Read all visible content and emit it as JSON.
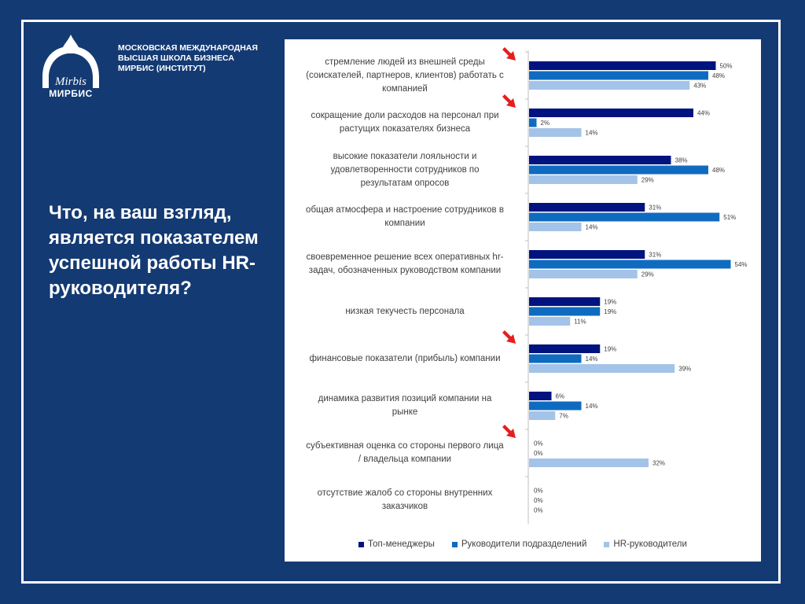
{
  "school": {
    "lines": [
      "МОСКОВСКАЯ МЕЖДУНАРОДНАЯ",
      "ВЫСШАЯ ШКОЛА БИЗНЕСА",
      "МИРБИС (ИНСТИТУТ)"
    ],
    "logo_script": "Mirbis",
    "logo_text": "МИРБИС"
  },
  "question": "Что, на ваш взгляд, является показателем успешной работы HR-руководителя?",
  "colors": {
    "background": "#143a73",
    "top_managers": "#00137f",
    "dept_heads": "#0f6bc0",
    "hr_heads": "#a4c3e8",
    "arrow": "#e51e1e"
  },
  "chart_data": {
    "type": "bar",
    "orientation": "horizontal",
    "categories": [
      "стремление людей из внешней среды (соискателей, партнеров, клиентов) работать с компанией",
      "сокращение доли расходов на персонал при растущих показателях бизнеса",
      "высокие показатели лояльности и удовлетворенности сотрудников по результатам опросов",
      "общая атмосфера и настроение сотрудников в компании",
      "своевременное решение всех оперативных hr-задач, обозначенных руководством компании",
      "низкая текучесть персонала",
      "финансовые показатели (прибыль) компании",
      "динамика развития позиций компании на рынке",
      "субъективная оценка со стороны первого лица / владельца компании",
      "отсутствие жалоб со стороны внутренних заказчиков"
    ],
    "category_lines": [
      [
        "стремление людей из внешней среды",
        "(соискателей, партнеров, клиентов) работать с",
        "компанией"
      ],
      [
        "сокращение доли расходов на персонал при",
        "растущих показателях бизнеса"
      ],
      [
        "высокие показатели лояльности и",
        "удовлетворенности сотрудников по",
        "результатам опросов"
      ],
      [
        "общая атмосфера и настроение сотрудников в",
        "компании"
      ],
      [
        "своевременное решение всех оперативных hr-",
        "задач, обозначенных руководством компании"
      ],
      [
        "низкая текучесть персонала"
      ],
      [
        "финансовые показатели (прибыль) компании"
      ],
      [
        "динамика развития позиций компании на",
        "рынке"
      ],
      [
        "субъективная оценка со стороны первого лица",
        "/ владельца компании"
      ],
      [
        "отсутствие жалоб со стороны внутренних",
        "заказчиков"
      ]
    ],
    "series": [
      {
        "name": "Топ-менеджеры",
        "values": [
          50,
          44,
          38,
          31,
          31,
          19,
          19,
          6,
          0,
          0
        ]
      },
      {
        "name": "Руководители подразделений",
        "values": [
          48,
          2,
          48,
          51,
          54,
          19,
          14,
          14,
          0,
          0
        ]
      },
      {
        "name": "HR-руководители",
        "values": [
          43,
          14,
          29,
          14,
          29,
          11,
          39,
          7,
          32,
          0
        ]
      }
    ],
    "value_suffix": "%",
    "xlim": [
      0,
      60
    ],
    "grid": false,
    "legend_position": "bottom",
    "highlighted_categories": [
      0,
      1,
      6,
      8
    ]
  }
}
